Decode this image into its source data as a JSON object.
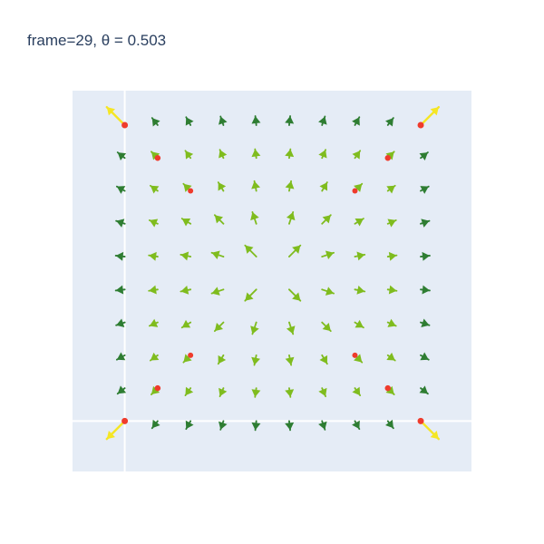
{
  "chart_data": {
    "type": "vector_field",
    "title": "frame=29, θ =  0.503",
    "xlim": [
      -1.5,
      10.5
    ],
    "ylim": [
      -1.5,
      10.5
    ],
    "grid": "off",
    "zero_lines": true,
    "legend": "none",
    "grid_points": {
      "x": [
        0,
        1,
        2,
        3,
        4,
        5,
        6,
        7,
        8,
        9
      ],
      "y": [
        0,
        1,
        2,
        3,
        4,
        5,
        6,
        7,
        8,
        9
      ]
    },
    "field_description_values": {
      "boundary": [
        0,
        9
      ],
      "center": 4.5
    },
    "red_dots": [
      {
        "x": 0,
        "y": 0,
        "size": 5
      },
      {
        "x": 9,
        "y": 0,
        "size": 5
      },
      {
        "x": 0,
        "y": 9,
        "size": 5
      },
      {
        "x": 9,
        "y": 9,
        "size": 5
      },
      {
        "x": 1,
        "y": 1,
        "size": 4.5
      },
      {
        "x": 8,
        "y": 1,
        "size": 4.5
      },
      {
        "x": 1,
        "y": 8,
        "size": 4.5
      },
      {
        "x": 8,
        "y": 8,
        "size": 4.5
      },
      {
        "x": 2,
        "y": 2,
        "size": 4
      },
      {
        "x": 7,
        "y": 2,
        "size": 4
      },
      {
        "x": 2,
        "y": 7,
        "size": 4
      },
      {
        "x": 7,
        "y": 7,
        "size": 4
      }
    ]
  },
  "colors": {
    "plot_bg": "#e5ecf6",
    "zero_line": "#ffffff",
    "yellow_arrow": "#f5e625",
    "green_arrow": "#7fbc1e",
    "dark_green_arrow": "#2e7d32",
    "red_dot": "#ef3b2c",
    "title": "#2a3f5f"
  }
}
